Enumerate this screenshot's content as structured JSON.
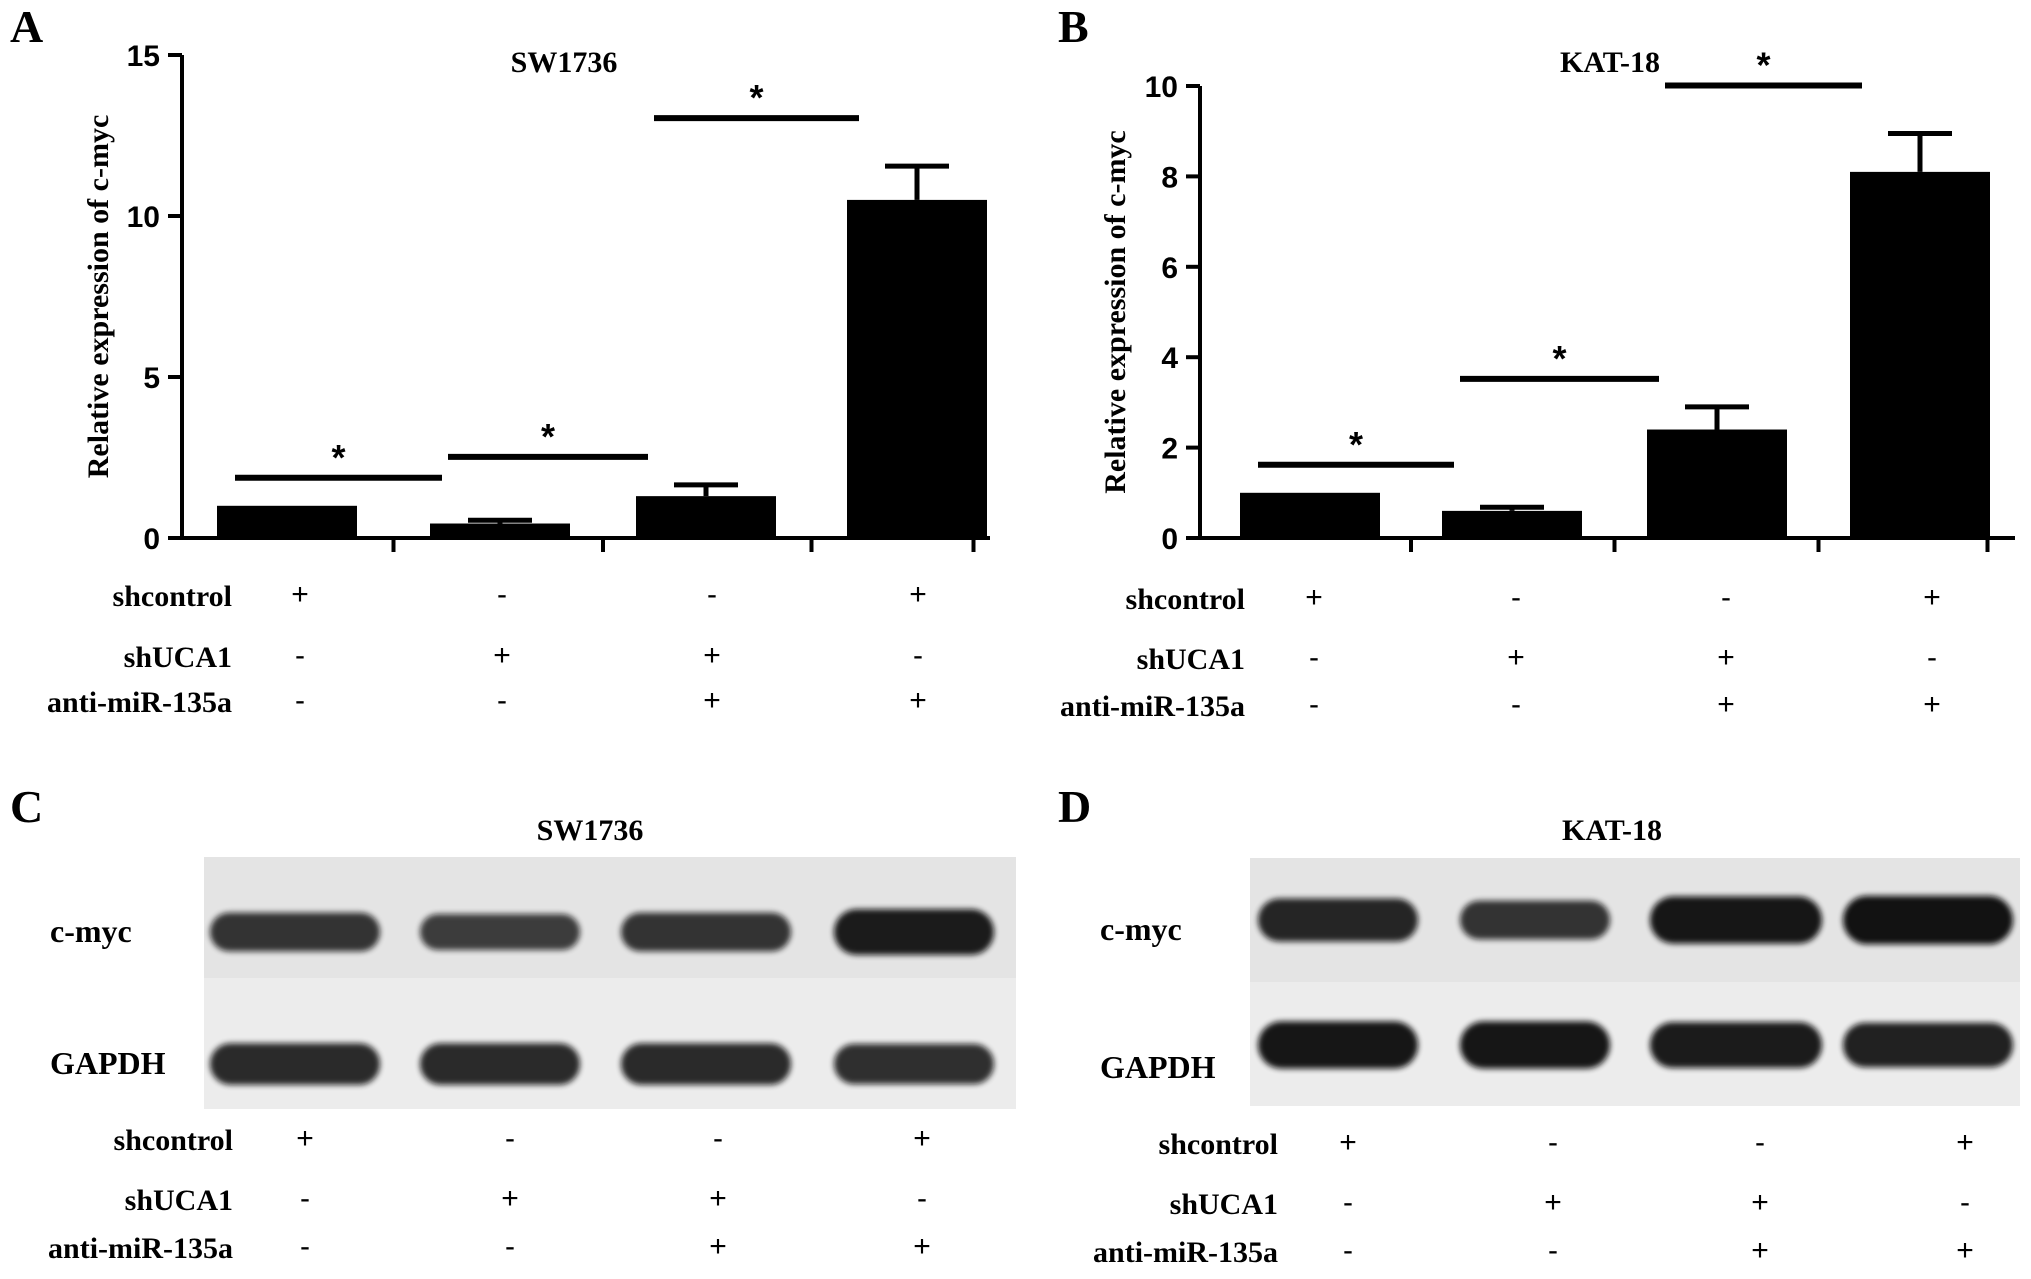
{
  "chart_data": [
    {
      "panel": "A",
      "type": "bar",
      "title": "SW1736",
      "ylabel": "Relative expression of c-myc",
      "ylim": [
        0,
        15
      ],
      "yticks": [
        0,
        5,
        10,
        15
      ],
      "values": [
        1.0,
        0.45,
        1.3,
        10.5
      ],
      "errors": [
        0.0,
        0.1,
        0.35,
        1.05
      ],
      "significance": [
        {
          "from": 0,
          "to": 1,
          "label": "*"
        },
        {
          "from": 1,
          "to": 2,
          "label": "*"
        },
        {
          "from": 2,
          "to": 3,
          "label": "*"
        }
      ],
      "conditions": [
        {
          "name": "shcontrol",
          "marks": [
            "+",
            "-",
            "-",
            "+"
          ]
        },
        {
          "name": "shUCA1",
          "marks": [
            "-",
            "+",
            "+",
            "-"
          ]
        },
        {
          "name": "anti-miR-135a",
          "marks": [
            "-",
            "-",
            "+",
            "+"
          ]
        }
      ]
    },
    {
      "panel": "B",
      "type": "bar",
      "title": "KAT-18",
      "ylabel": "Relative expression of c-myc",
      "ylim": [
        0,
        10
      ],
      "yticks": [
        0,
        2,
        4,
        6,
        8,
        10
      ],
      "values": [
        1.0,
        0.6,
        2.4,
        8.1
      ],
      "errors": [
        0.0,
        0.08,
        0.5,
        0.85
      ],
      "significance": [
        {
          "from": 0,
          "to": 1,
          "label": "*"
        },
        {
          "from": 1,
          "to": 2,
          "label": "*"
        },
        {
          "from": 2,
          "to": 3,
          "label": "*"
        }
      ],
      "conditions": [
        {
          "name": "shcontrol",
          "marks": [
            "+",
            "-",
            "-",
            "+"
          ]
        },
        {
          "name": "shUCA1",
          "marks": [
            "-",
            "+",
            "+",
            "-"
          ]
        },
        {
          "name": "anti-miR-135a",
          "marks": [
            "-",
            "-",
            "+",
            "+"
          ]
        }
      ]
    }
  ],
  "blots": [
    {
      "panel": "C",
      "title": "SW1736",
      "rows": [
        "c-myc",
        "GAPDH"
      ],
      "band_intensity": {
        "c-myc": [
          0.6,
          0.5,
          0.6,
          0.85
        ],
        "GAPDH": [
          0.7,
          0.7,
          0.7,
          0.65
        ]
      },
      "conditions": [
        {
          "name": "shcontrol",
          "marks": [
            "+",
            "-",
            "-",
            "+"
          ]
        },
        {
          "name": "shUCA1",
          "marks": [
            "-",
            "+",
            "+",
            "-"
          ]
        },
        {
          "name": "anti-miR-135a",
          "marks": [
            "-",
            "-",
            "+",
            "+"
          ]
        }
      ]
    },
    {
      "panel": "D",
      "title": "KAT-18",
      "rows": [
        "c-myc",
        "GAPDH"
      ],
      "band_intensity": {
        "c-myc": [
          0.75,
          0.6,
          0.9,
          0.95
        ],
        "GAPDH": [
          0.9,
          0.9,
          0.85,
          0.8
        ]
      },
      "conditions": [
        {
          "name": "shcontrol",
          "marks": [
            "+",
            "-",
            "-",
            "+"
          ]
        },
        {
          "name": "shUCA1",
          "marks": [
            "-",
            "+",
            "+",
            "-"
          ]
        },
        {
          "name": "anti-miR-135a",
          "marks": [
            "-",
            "-",
            "+",
            "+"
          ]
        }
      ]
    }
  ],
  "colors": {
    "bar": "#000000",
    "blot_background": "#e4e4e4",
    "band": "#111111"
  }
}
